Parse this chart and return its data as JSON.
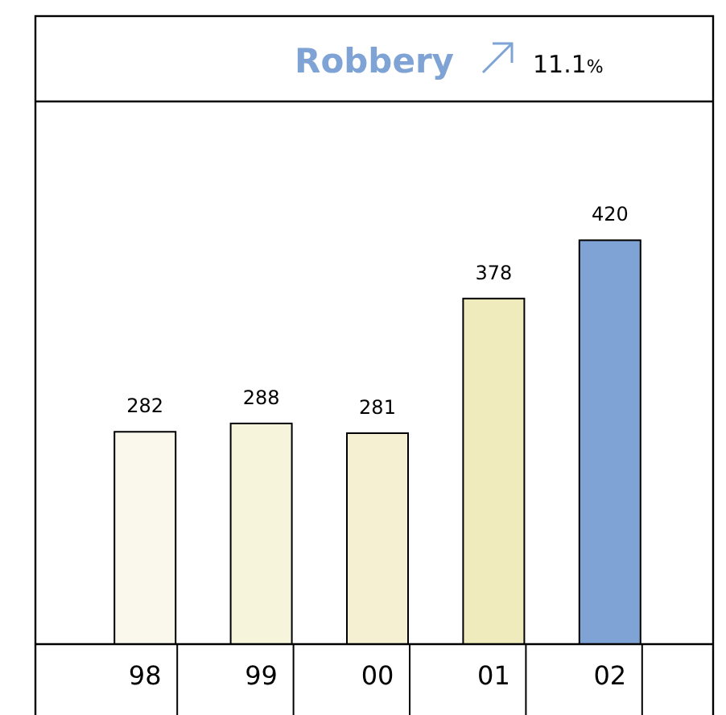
{
  "chart_data": {
    "type": "bar",
    "title": "Robbery",
    "subtitle": "11.1%",
    "categories": [
      "98",
      "99",
      "00",
      "01",
      "02"
    ],
    "values": [
      282,
      288,
      281,
      378,
      420
    ],
    "colors": [
      "#faf8ec",
      "#f7f4dc",
      "#f5f0d2",
      "#efebbd",
      "#7fa3d4"
    ],
    "ylim": [
      129,
      520
    ],
    "data_labels": true
  }
}
